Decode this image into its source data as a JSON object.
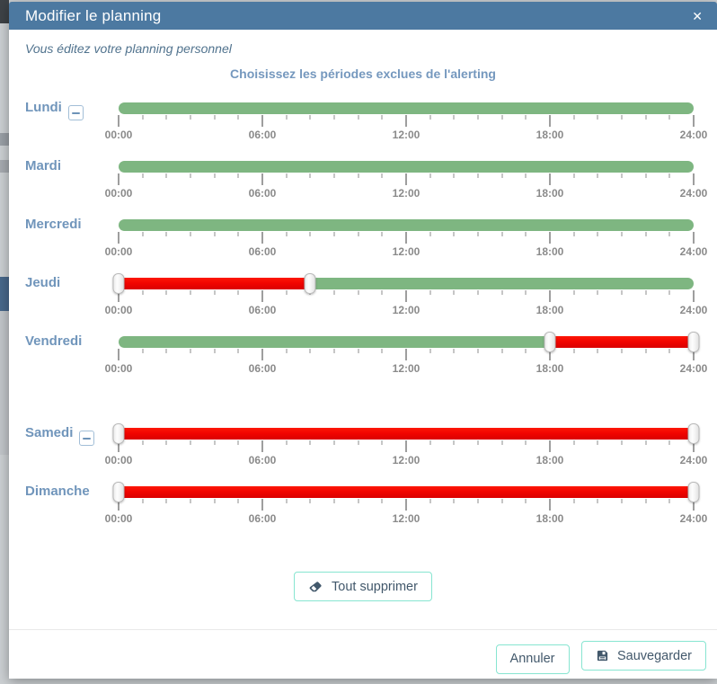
{
  "modal": {
    "title": "Modifier le planning",
    "close_glyph": "✕",
    "subtitle": "Vous éditez votre planning personnel",
    "heading": "Choisissez les périodes exclues de l'alerting"
  },
  "colors": {
    "header_bg": "#4c79a1",
    "day_label": "#7095bb",
    "available_green": "#7eb681",
    "excluded_red": "#ee0000",
    "button_border": "#87e5d1",
    "button_text": "#42586b"
  },
  "slider": {
    "hours_total": 24,
    "tick_labels": [
      "00:00",
      "06:00",
      "12:00",
      "18:00",
      "24:00"
    ]
  },
  "days": [
    {
      "label": "Lundi",
      "removable": true,
      "segments": [
        {
          "color": "green",
          "from": 0,
          "to": 24
        }
      ],
      "handles": []
    },
    {
      "label": "Mardi",
      "removable": false,
      "segments": [
        {
          "color": "green",
          "from": 0,
          "to": 24
        }
      ],
      "handles": []
    },
    {
      "label": "Mercredi",
      "removable": false,
      "segments": [
        {
          "color": "green",
          "from": 0,
          "to": 24
        }
      ],
      "handles": []
    },
    {
      "label": "Jeudi",
      "removable": false,
      "segments": [
        {
          "color": "red",
          "from": 0,
          "to": 8
        },
        {
          "color": "green",
          "from": 8,
          "to": 24
        }
      ],
      "handles": [
        0,
        8
      ]
    },
    {
      "label": "Vendredi",
      "removable": false,
      "segments": [
        {
          "color": "green",
          "from": 0,
          "to": 18
        },
        {
          "color": "red",
          "from": 18,
          "to": 24
        }
      ],
      "handles": [
        18,
        24
      ]
    },
    {
      "label": "Samedi",
      "removable": true,
      "gap_before": true,
      "segments": [
        {
          "color": "red",
          "from": 0,
          "to": 24
        }
      ],
      "handles": [
        0,
        24
      ]
    },
    {
      "label": "Dimanche",
      "removable": false,
      "segments": [
        {
          "color": "red",
          "from": 0,
          "to": 24
        }
      ],
      "handles": [
        0,
        24
      ]
    }
  ],
  "actions": {
    "clear_all": "Tout supprimer",
    "cancel": "Annuler",
    "save": "Sauvegarder"
  }
}
